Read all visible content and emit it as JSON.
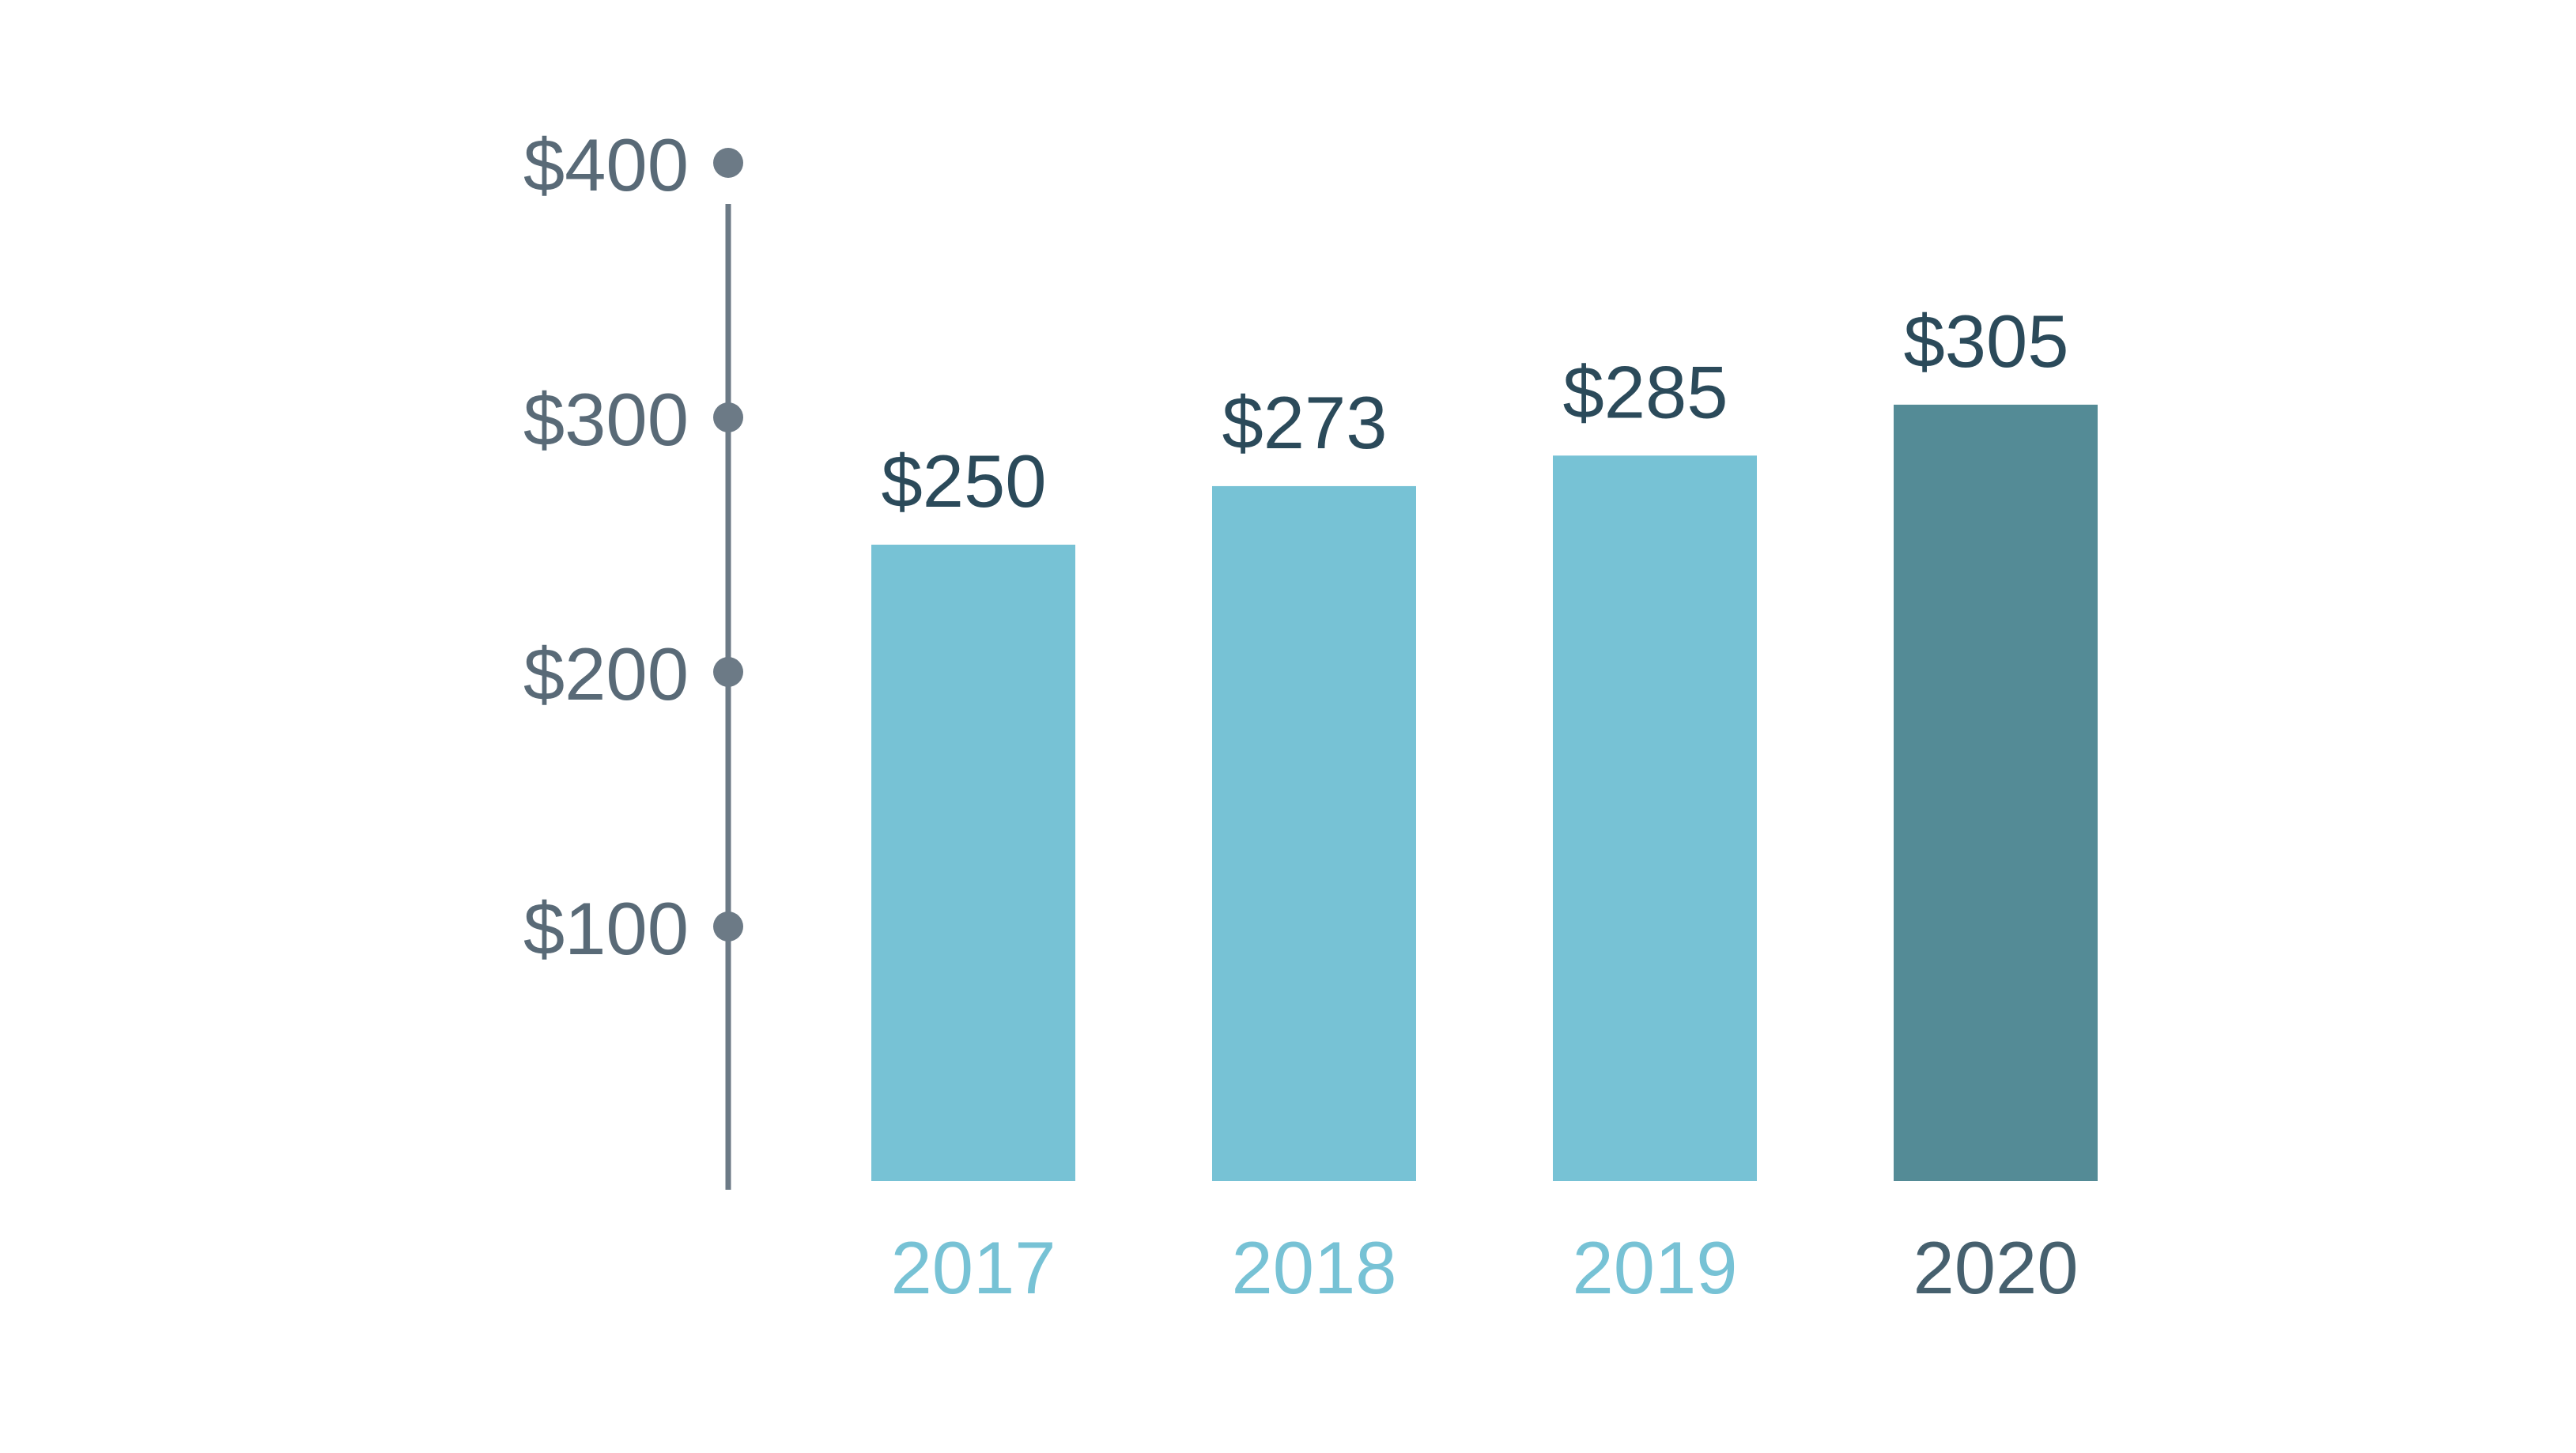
{
  "chart_data": {
    "type": "bar",
    "categories": [
      "2017",
      "2018",
      "2019",
      "2020"
    ],
    "values": [
      250,
      273,
      285,
      305
    ],
    "value_labels": [
      "$250",
      "$273",
      "$285",
      "$305"
    ],
    "yticks": [
      100,
      200,
      300,
      400
    ],
    "ytick_labels": [
      "$100",
      "$200",
      "$300",
      "$400"
    ],
    "ylim": [
      0,
      400
    ],
    "title": "",
    "xlabel": "",
    "ylabel": "",
    "grid": false,
    "highlight_index": 3,
    "colors": {
      "bar": "#77c2d5",
      "bar_highlight": "#548b96",
      "axis": "#6c7a86",
      "tick_label": "#596a77",
      "value_label": "#2b4a5a",
      "category_label": "#77c2d5",
      "category_label_highlight": "#46606e"
    }
  }
}
